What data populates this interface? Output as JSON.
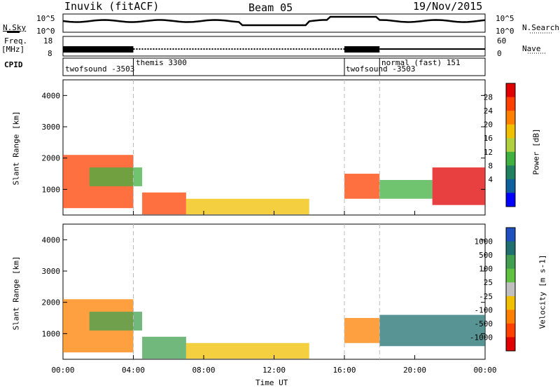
{
  "header": {
    "station": "Inuvik (fitACF)",
    "beam": "Beam 05",
    "date": "19/Nov/2015"
  },
  "panels": {
    "noise": {
      "left_label": "N.Sky",
      "right_label": "N.Search",
      "ticks": [
        "10^5",
        "10^0"
      ]
    },
    "freq": {
      "left_label_top": "Freq.",
      "left_label_bot": "[MHz]",
      "left_ticks": [
        "18",
        "8"
      ],
      "right_label": "Nave",
      "right_ticks": [
        "60",
        "0"
      ]
    },
    "cpid": {
      "label": "CPID",
      "programs": [
        {
          "name": "twofsound -3503",
          "start_h": 0,
          "end_h": 4
        },
        {
          "name": "themis 3300",
          "start_h": 4,
          "end_h": 16
        },
        {
          "name": "twofsound -3503",
          "start_h": 16,
          "end_h": 18
        },
        {
          "name": "normal (fast) 151",
          "start_h": 18,
          "end_h": 24
        }
      ]
    }
  },
  "power_panel": {
    "ylabel": "Slant Range [km]",
    "yticks": [
      "4000",
      "3000",
      "2000",
      "1000"
    ],
    "cbar_label": "Power [dB]",
    "cbar_ticks": [
      "28",
      "24",
      "20",
      "16",
      "12",
      "8",
      "4"
    ],
    "cbar_colors": [
      "#e00000",
      "#ff4000",
      "#ff8000",
      "#f0c000",
      "#b0d040",
      "#40b040",
      "#208060",
      "#1060a0",
      "#0000ff"
    ]
  },
  "velocity_panel": {
    "ylabel": "Slant Range [km]",
    "yticks": [
      "4000",
      "3000",
      "2000",
      "1000"
    ],
    "cbar_label": "Velocity [m s-1]",
    "cbar_ticks": [
      "1000",
      "500",
      "100",
      "25",
      "-25",
      "-100",
      "-500",
      "-1000"
    ],
    "cbar_colors": [
      "#2050c0",
      "#207070",
      "#40a050",
      "#60c040",
      "#c0c0c0",
      "#f0c000",
      "#ff8000",
      "#ff4000",
      "#e00000"
    ]
  },
  "xaxis": {
    "label": "Time UT",
    "ticks": [
      "00:00",
      "04:00",
      "08:00",
      "12:00",
      "16:00",
      "20:00",
      "00:00"
    ]
  },
  "chart_data": [
    {
      "type": "heatmap",
      "title": "Power",
      "x_unit": "hours UT",
      "y_unit": "km",
      "ylim": [
        180,
        4500
      ],
      "xlim": [
        0,
        24
      ],
      "regions": [
        {
          "x0": 0,
          "x1": 4,
          "y0": 400,
          "y1": 2100,
          "color": "#ff4000"
        },
        {
          "x0": 1.5,
          "x1": 4.5,
          "y0": 1100,
          "y1": 1700,
          "color": "#40b040"
        },
        {
          "x0": 4.5,
          "x1": 7,
          "y0": 200,
          "y1": 900,
          "color": "#ff4000"
        },
        {
          "x0": 7,
          "x1": 14,
          "y0": 200,
          "y1": 700,
          "color": "#f0c000"
        },
        {
          "x0": 16,
          "x1": 18,
          "y0": 700,
          "y1": 1500,
          "color": "#ff4000"
        },
        {
          "x0": 18,
          "x1": 21,
          "y0": 700,
          "y1": 1300,
          "color": "#40b040"
        },
        {
          "x0": 21,
          "x1": 24,
          "y0": 500,
          "y1": 1700,
          "color": "#e00000"
        }
      ]
    },
    {
      "type": "heatmap",
      "title": "Velocity",
      "x_unit": "hours UT",
      "y_unit": "km",
      "ylim": [
        180,
        4500
      ],
      "xlim": [
        0,
        24
      ],
      "regions": [
        {
          "x0": 0,
          "x1": 4,
          "y0": 400,
          "y1": 2100,
          "color": "#ff8000"
        },
        {
          "x0": 1.5,
          "x1": 4.5,
          "y0": 1100,
          "y1": 1700,
          "color": "#40a050"
        },
        {
          "x0": 4.5,
          "x1": 7,
          "y0": 200,
          "y1": 900,
          "color": "#40a050"
        },
        {
          "x0": 7,
          "x1": 14,
          "y0": 200,
          "y1": 700,
          "color": "#f0c000"
        },
        {
          "x0": 16,
          "x1": 18,
          "y0": 700,
          "y1": 1500,
          "color": "#ff8000"
        },
        {
          "x0": 18,
          "x1": 24,
          "y0": 600,
          "y1": 1600,
          "color": "#207070"
        }
      ]
    }
  ]
}
